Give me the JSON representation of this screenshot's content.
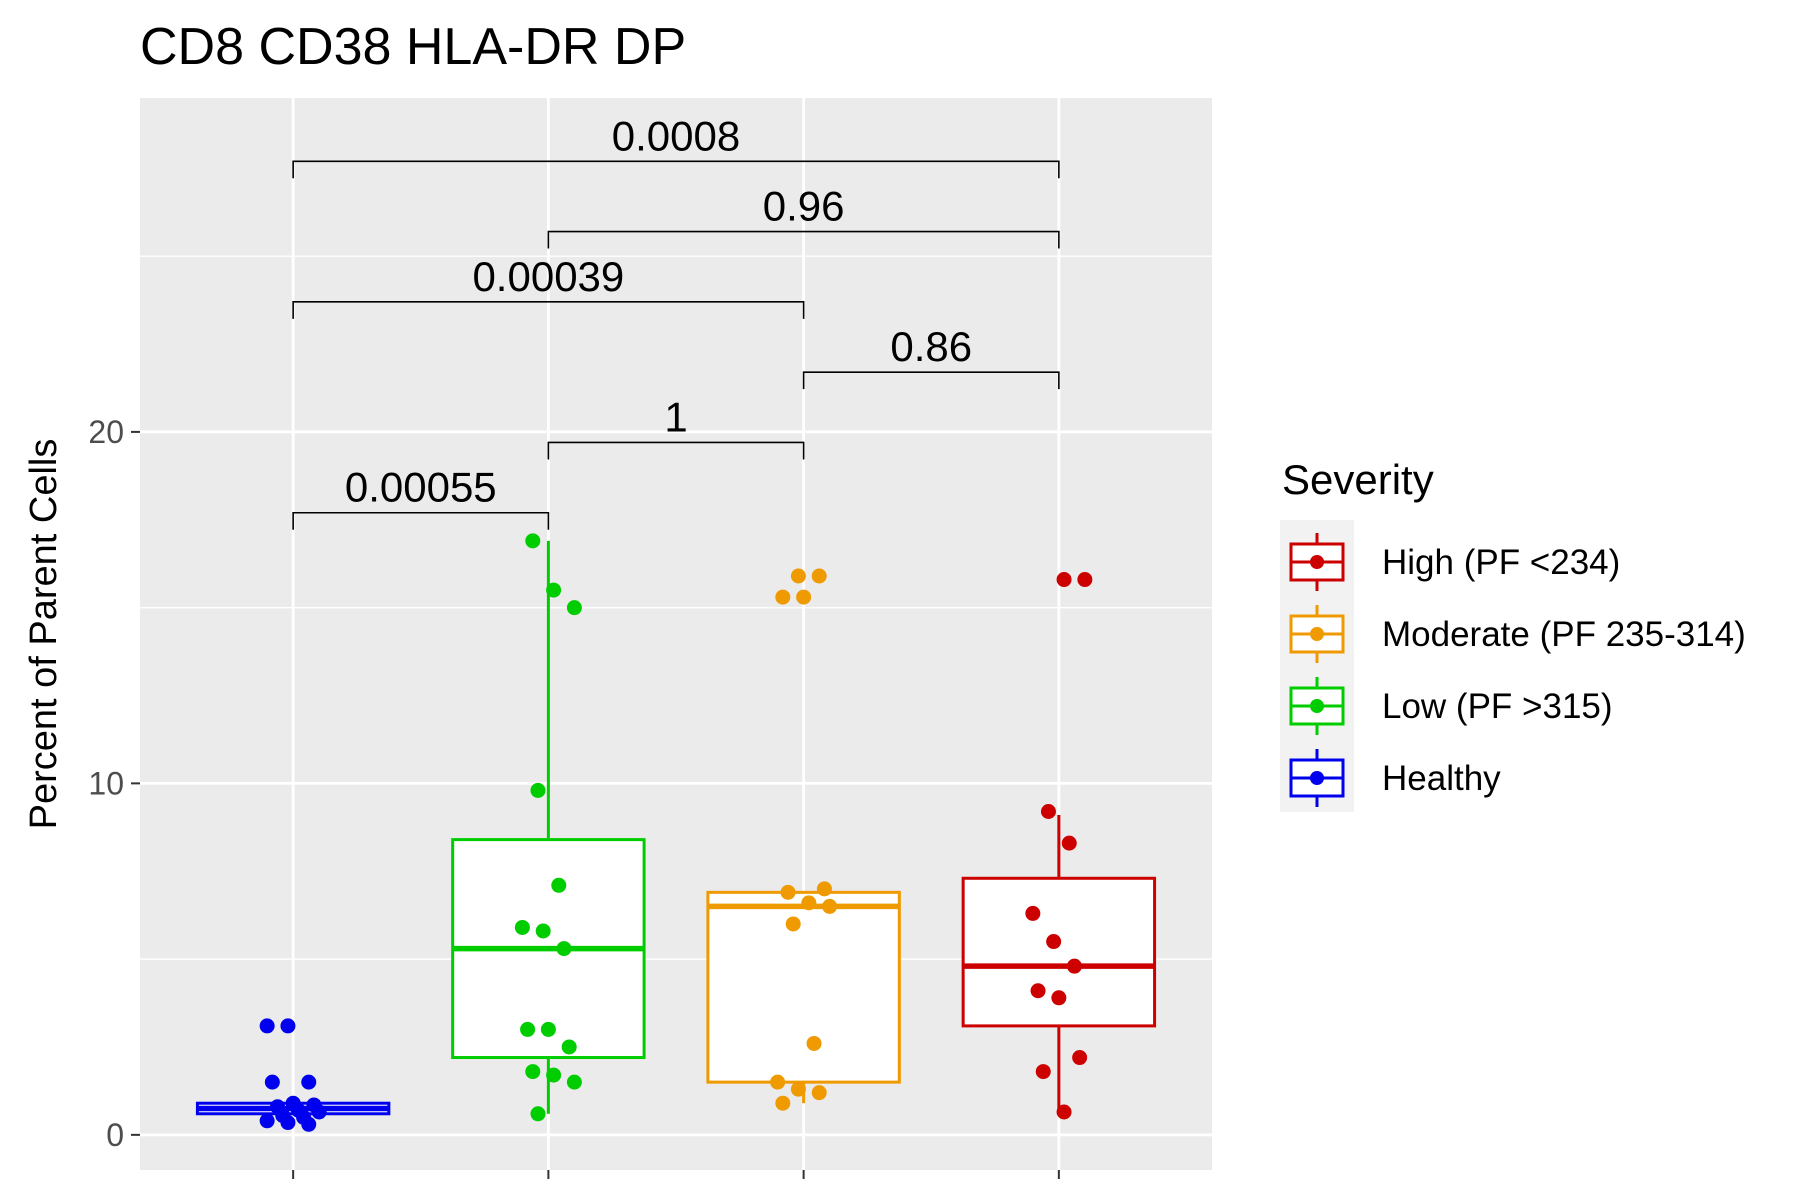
{
  "chart_data": {
    "type": "box",
    "title": "CD8 CD38 HLA-DR DP",
    "xlabel": "",
    "ylabel": "Percent of Parent Cells",
    "ylim": [
      -1,
      29.5
    ],
    "yticks": [
      0,
      10,
      20
    ],
    "grid": true,
    "legend_position": "right",
    "legend_title": "Severity",
    "legend_order": [
      "High (PF <234)",
      "Moderate (PF 235-314)",
      "Low (PF >315)",
      "Healthy"
    ],
    "groups": [
      {
        "name": "Healthy",
        "color": "#0000ee",
        "box": {
          "lower_whisker": 0.6,
          "q1": 0.6,
          "median": 0.75,
          "q3": 0.9,
          "upper_whisker": 0.9
        },
        "points": [
          3.1,
          3.1,
          1.5,
          1.5,
          0.9,
          0.85,
          0.8,
          0.7,
          0.65,
          0.55,
          0.5,
          0.4,
          0.35,
          0.3
        ]
      },
      {
        "name": "Low (PF >315)",
        "color": "#00cd00",
        "box": {
          "lower_whisker": 0.6,
          "q1": 2.2,
          "median": 5.3,
          "q3": 8.4,
          "upper_whisker": 16.9
        },
        "points": [
          16.9,
          15.5,
          15.0,
          9.8,
          7.1,
          5.9,
          5.8,
          5.3,
          3.0,
          3.0,
          2.5,
          1.8,
          1.7,
          1.5,
          0.6
        ]
      },
      {
        "name": "Moderate (PF 235-314)",
        "color": "#ee9a00",
        "box": {
          "lower_whisker": 0.9,
          "q1": 1.5,
          "median": 6.5,
          "q3": 6.9,
          "upper_whisker": 6.9
        },
        "points": [
          15.9,
          15.9,
          15.3,
          15.3,
          7.0,
          6.9,
          6.6,
          6.5,
          6.0,
          2.6,
          1.5,
          1.3,
          1.2,
          0.9
        ]
      },
      {
        "name": "High (PF <234)",
        "color": "#cd0000",
        "box": {
          "lower_whisker": 0.7,
          "q1": 3.1,
          "median": 4.8,
          "q3": 7.3,
          "upper_whisker": 9.1
        },
        "points": [
          15.8,
          15.8,
          9.2,
          8.3,
          6.3,
          5.5,
          4.8,
          4.1,
          3.9,
          2.2,
          1.8,
          0.65
        ]
      }
    ],
    "comparisons": [
      {
        "from": 0,
        "to": 1,
        "y": 17.7,
        "label": "0.00055"
      },
      {
        "from": 1,
        "to": 2,
        "y": 19.7,
        "label": "1"
      },
      {
        "from": 2,
        "to": 3,
        "y": 21.7,
        "label": "0.86"
      },
      {
        "from": 0,
        "to": 2,
        "y": 23.7,
        "label": "0.00039"
      },
      {
        "from": 1,
        "to": 3,
        "y": 25.7,
        "label": "0.96"
      },
      {
        "from": 0,
        "to": 3,
        "y": 27.7,
        "label": "0.0008"
      }
    ]
  }
}
